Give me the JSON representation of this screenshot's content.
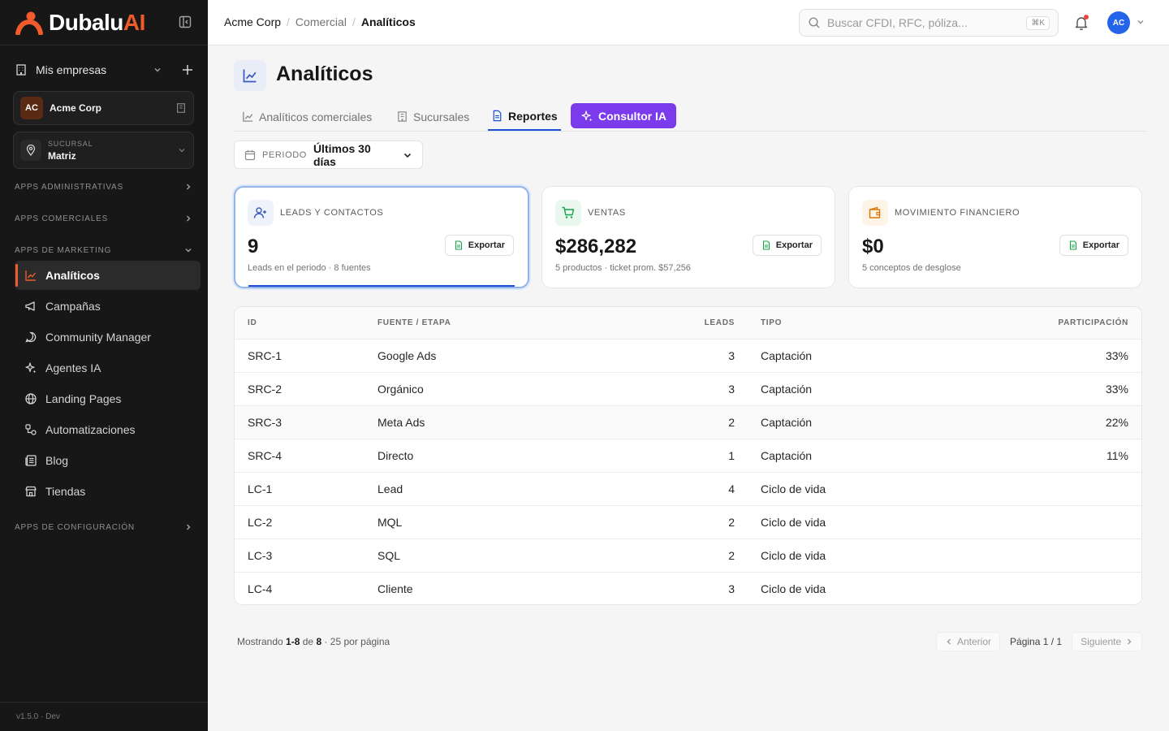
{
  "app": {
    "name_main": "Dubalu",
    "name_accent": "AI",
    "version": "v1.5.0 · Dev"
  },
  "sidebar": {
    "companies_label": "Mis empresas",
    "company": {
      "initials": "AC",
      "name": "Acme Corp"
    },
    "branch": {
      "label": "SUCURSAL",
      "name": "Matriz"
    },
    "sections": {
      "admin": "APPS ADMINISTRATIVAS",
      "comercial": "APPS COMERCIALES",
      "marketing": "APPS DE MARKETING",
      "config": "APPS DE CONFIGURACIÓN"
    },
    "items": [
      {
        "label": "Analíticos",
        "icon": "chart-line-icon"
      },
      {
        "label": "Campañas",
        "icon": "megaphone-icon"
      },
      {
        "label": "Community Manager",
        "icon": "chat-bubble-icon"
      },
      {
        "label": "Agentes IA",
        "icon": "sparkles-icon"
      },
      {
        "label": "Landing Pages",
        "icon": "globe-icon"
      },
      {
        "label": "Automatizaciones",
        "icon": "workflow-icon"
      },
      {
        "label": "Blog",
        "icon": "newspaper-icon"
      },
      {
        "label": "Tiendas",
        "icon": "store-icon"
      }
    ]
  },
  "topbar": {
    "breadcrumb": [
      "Acme Corp",
      "Comercial",
      "Analíticos"
    ],
    "search_placeholder": "Buscar CFDI, RFC, póliza...",
    "search_shortcut": "⌘K",
    "user_initials": "AC"
  },
  "page": {
    "title": "Analíticos",
    "tabs": [
      "Analíticos comerciales",
      "Sucursales",
      "Reportes",
      "Consultor IA"
    ],
    "active_tab": "Reportes",
    "period": {
      "label": "PERIODO",
      "value": "Últimos 30 días"
    }
  },
  "cards": [
    {
      "label": "LEADS Y CONTACTOS",
      "value": "9",
      "sub": "Leads en el periodo · 8 fuentes",
      "export": "Exportar"
    },
    {
      "label": "VENTAS",
      "value": "$286,282",
      "sub": "5 productos · ticket prom. $57,256",
      "export": "Exportar"
    },
    {
      "label": "MOVIMIENTO FINANCIERO",
      "value": "$0",
      "sub": "5 conceptos de desglose",
      "export": "Exportar"
    }
  ],
  "table": {
    "headers": {
      "id": "ID",
      "source": "FUENTE / ETAPA",
      "leads": "LEADS",
      "type": "TIPO",
      "share": "PARTICIPACIÓN"
    },
    "rows": [
      {
        "id": "SRC-1",
        "source": "Google Ads",
        "leads": "3",
        "type": "Captación",
        "share": "33%"
      },
      {
        "id": "SRC-2",
        "source": "Orgánico",
        "leads": "3",
        "type": "Captación",
        "share": "33%"
      },
      {
        "id": "SRC-3",
        "source": "Meta Ads",
        "leads": "2",
        "type": "Captación",
        "share": "22%"
      },
      {
        "id": "SRC-4",
        "source": "Directo",
        "leads": "1",
        "type": "Captación",
        "share": "11%"
      },
      {
        "id": "LC-1",
        "source": "Lead",
        "leads": "4",
        "type": "Ciclo de vida",
        "share": ""
      },
      {
        "id": "LC-2",
        "source": "MQL",
        "leads": "2",
        "type": "Ciclo de vida",
        "share": ""
      },
      {
        "id": "LC-3",
        "source": "SQL",
        "leads": "2",
        "type": "Ciclo de vida",
        "share": ""
      },
      {
        "id": "LC-4",
        "source": "Cliente",
        "leads": "3",
        "type": "Ciclo de vida",
        "share": ""
      }
    ]
  },
  "pagination": {
    "prefix": "Mostrando",
    "range": "1-8",
    "of": "de",
    "total": "8",
    "per_page": "· 25 por página",
    "prev": "Anterior",
    "page_info": "Página 1 / 1",
    "next": "Siguiente"
  },
  "colors": {
    "brand": "#ef5b2b",
    "accent_blue": "#1d4ed8",
    "ai_purple": "#7c3aed",
    "sidebar_bg": "#171717"
  }
}
